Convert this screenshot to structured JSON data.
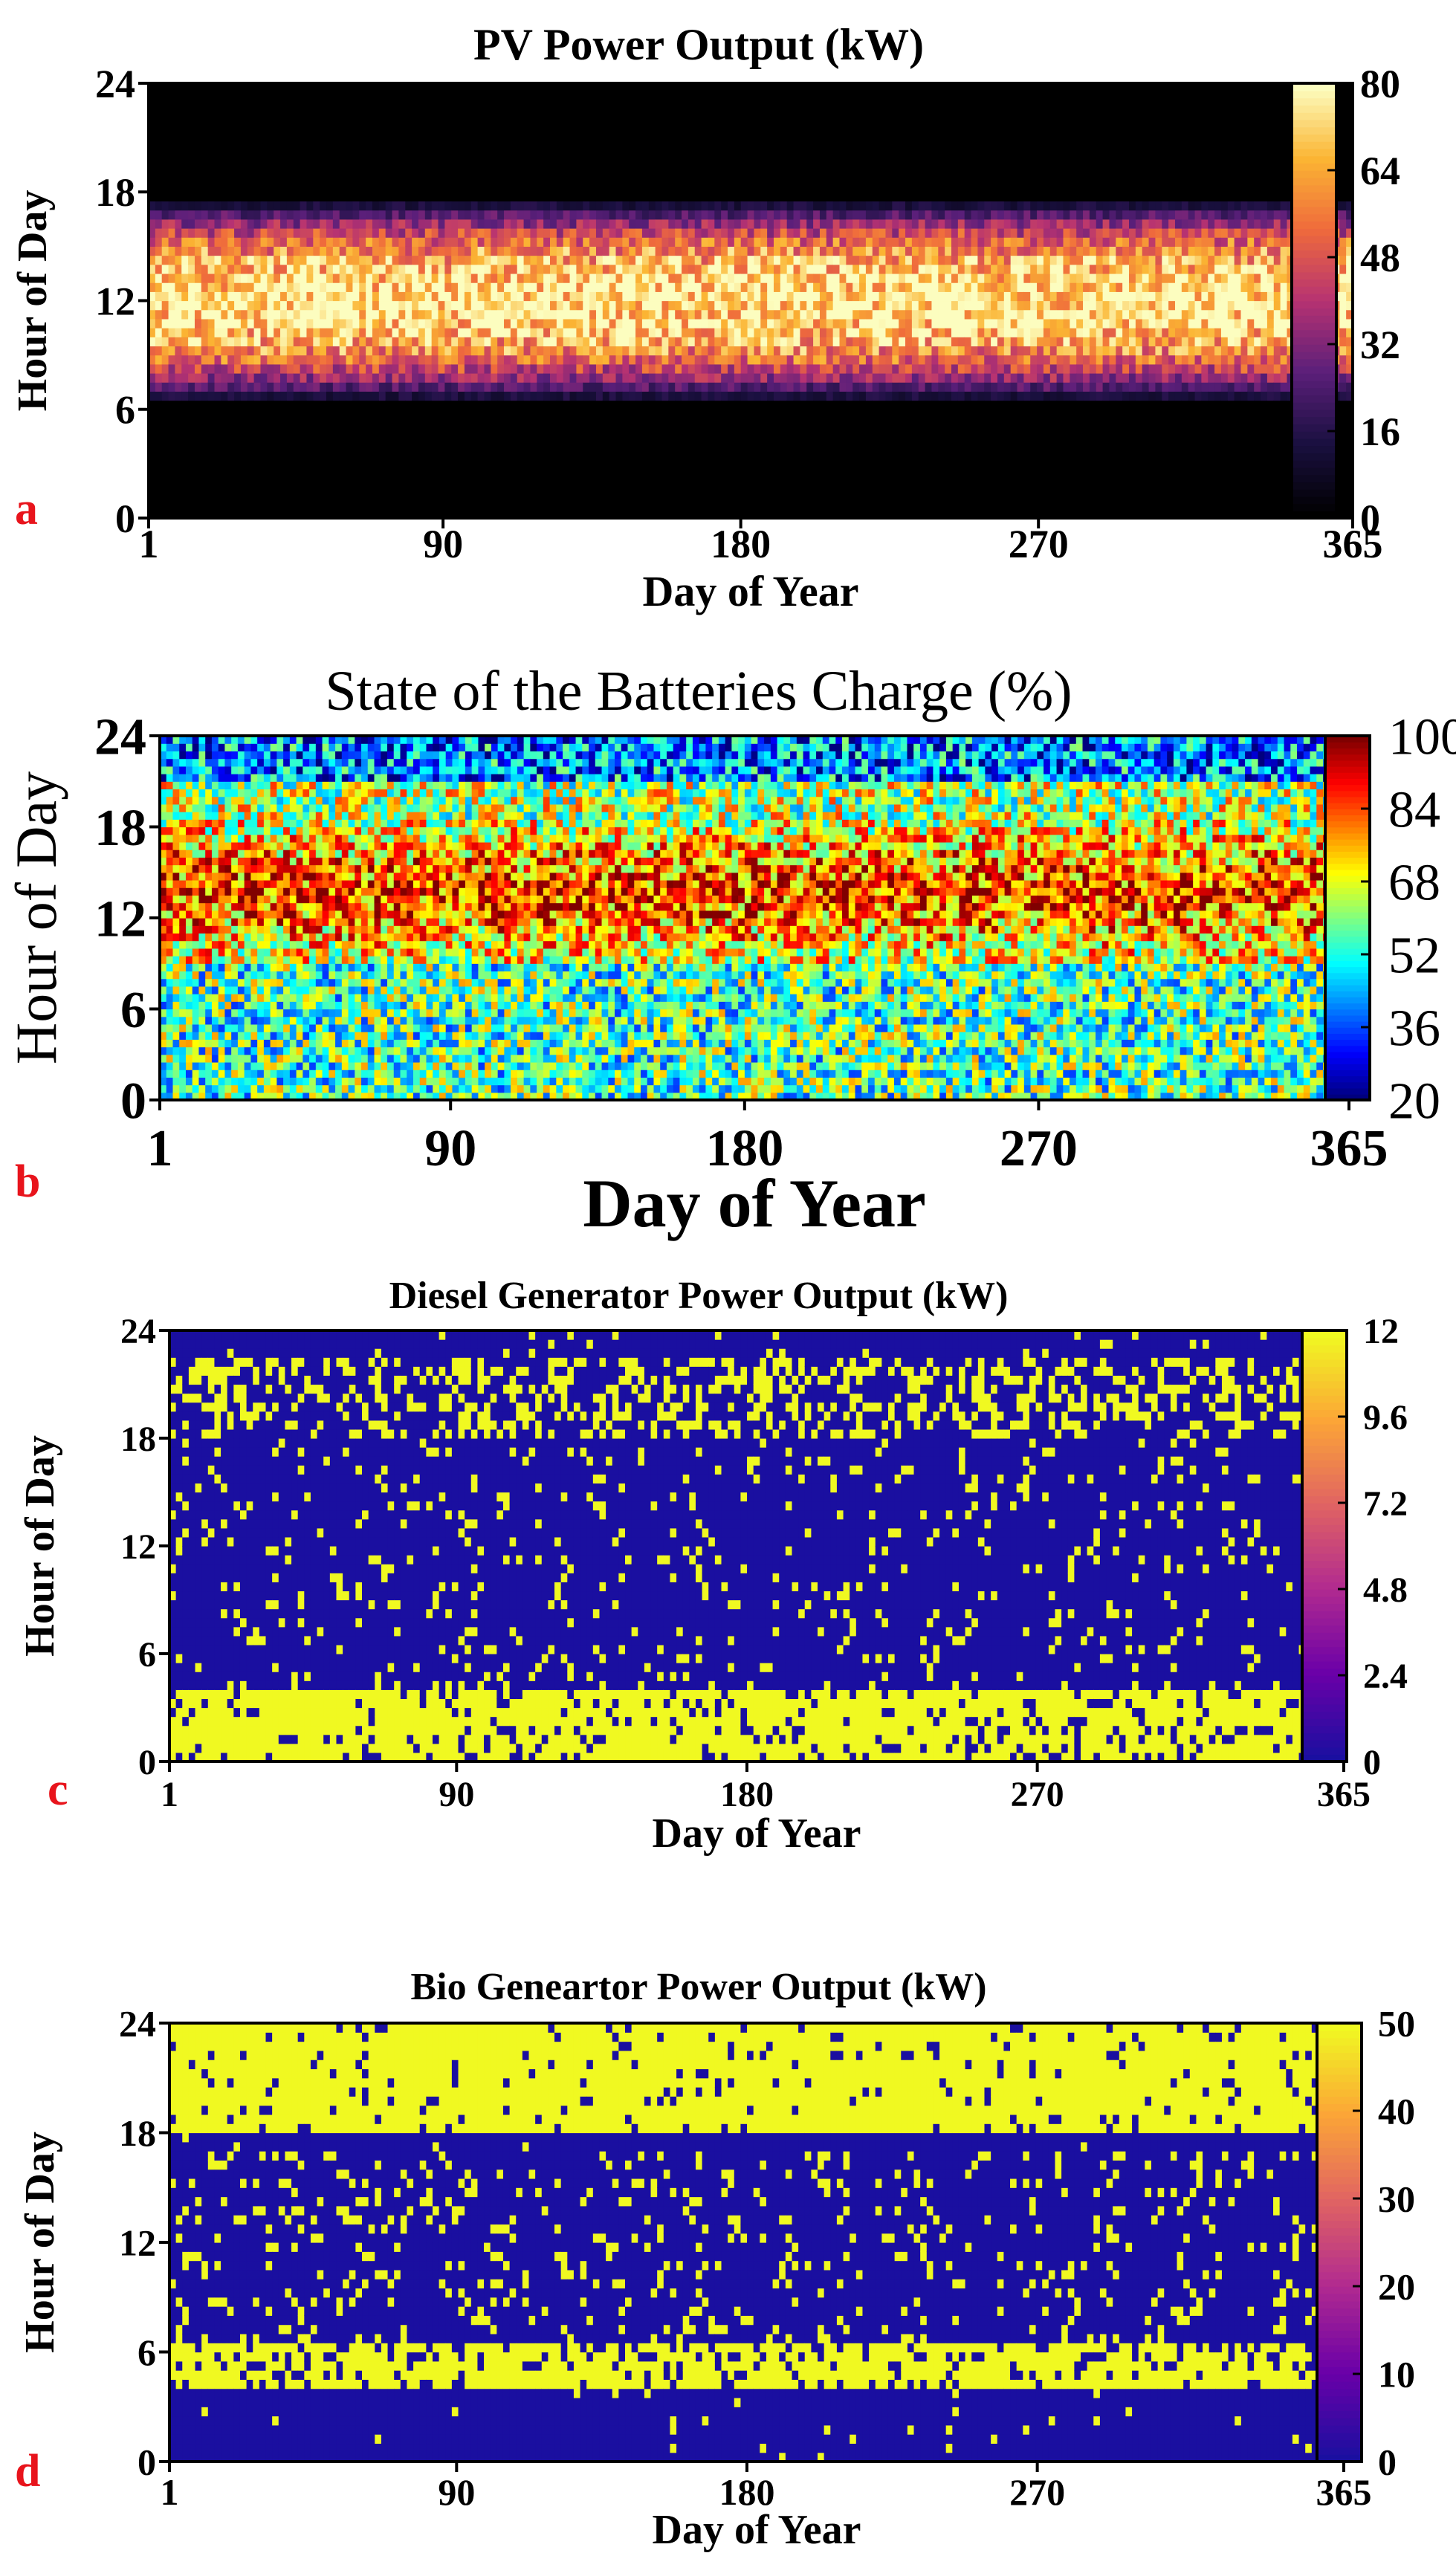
{
  "figure": {
    "panels": [
      "a",
      "b",
      "c",
      "d"
    ]
  },
  "chart_data": [
    {
      "type": "heatmap",
      "panel_label": "a",
      "title": "PV Power Output (kW)",
      "xlabel": "Day of Year",
      "ylabel": "Hour of Day",
      "xlim": [
        1,
        365
      ],
      "ylim": [
        0,
        24
      ],
      "xticks": [
        "1",
        "90",
        "180",
        "270",
        "365"
      ],
      "yticks": [
        "0",
        "6",
        "12",
        "18",
        "24"
      ],
      "colorbar": {
        "ticks": [
          "0",
          "16",
          "32",
          "48",
          "64",
          "80"
        ],
        "range": [
          0,
          80
        ],
        "colormap": [
          "#000000",
          "#1a1040",
          "#5b1f7a",
          "#b63272",
          "#ef6a3c",
          "#fbb533",
          "#fcfdbf"
        ]
      },
      "pattern": {
        "active_hours": [
          6,
          17.5
        ],
        "peak_hour": 12,
        "mean_value": 38,
        "max_value": 80
      }
    },
    {
      "type": "heatmap",
      "panel_label": "b",
      "title": "State of the Batteries Charge (%)",
      "xlabel": "Day of Year",
      "ylabel": "Hour of Day",
      "xlim": [
        1,
        365
      ],
      "ylim": [
        0,
        24
      ],
      "xticks": [
        "1",
        "90",
        "180",
        "270",
        "365"
      ],
      "yticks": [
        "0",
        "6",
        "12",
        "18",
        "24"
      ],
      "colorbar": {
        "ticks": [
          "20",
          "36",
          "52",
          "68",
          "84",
          "100"
        ],
        "range": [
          20,
          100
        ],
        "colormap": [
          "#00007f",
          "#0000ff",
          "#0080ff",
          "#00ffff",
          "#80ff80",
          "#ffff00",
          "#ff8000",
          "#ff0000",
          "#800000"
        ]
      },
      "pattern": {
        "high_band_hours": [
          9,
          18
        ],
        "low_band_hours": [
          19,
          24
        ],
        "mean_value": 62
      }
    },
    {
      "type": "heatmap",
      "panel_label": "c",
      "title": "Diesel Generator Power Output (kW)",
      "xlabel": "Day of Year",
      "ylabel": "Hour of Day",
      "xlim": [
        1,
        365
      ],
      "ylim": [
        0,
        24
      ],
      "xticks": [
        "1",
        "90",
        "180",
        "270",
        "365"
      ],
      "yticks": [
        "0",
        "6",
        "12",
        "18",
        "24"
      ],
      "colorbar": {
        "ticks": [
          "0",
          "2.4",
          "4.8",
          "7.2",
          "9.6",
          "12"
        ],
        "range": [
          0,
          12
        ],
        "colormap": [
          "#1a0fa0",
          "#6a00a8",
          "#b12a90",
          "#e16462",
          "#fca636",
          "#f0f921"
        ]
      },
      "pattern": {
        "always_on_hours": [
          0,
          4
        ],
        "evening_on_hours": [
          18,
          22
        ],
        "on_value": 12,
        "off_value": 0
      }
    },
    {
      "type": "heatmap",
      "panel_label": "d",
      "title": "Bio Geneartor Power Output (kW)",
      "xlabel": "Day of Year",
      "ylabel": "Hour of Day",
      "xlim": [
        1,
        365
      ],
      "ylim": [
        0,
        24
      ],
      "xticks": [
        "1",
        "90",
        "180",
        "270",
        "365"
      ],
      "yticks": [
        "0",
        "6",
        "12",
        "18",
        "24"
      ],
      "colorbar": {
        "ticks": [
          "0",
          "10",
          "20",
          "30",
          "40",
          "50"
        ],
        "range": [
          0,
          50
        ],
        "colormap": [
          "#1a0fa0",
          "#6a00a8",
          "#b12a90",
          "#e16462",
          "#fca636",
          "#f0f921"
        ]
      },
      "pattern": {
        "evening_on_hours": [
          18,
          24
        ],
        "morning_on_hours": [
          4,
          6.5
        ],
        "on_value": 50,
        "off_value": 0
      }
    }
  ],
  "colors": {
    "panel_label": "#e8141c",
    "axis": "#000000"
  }
}
